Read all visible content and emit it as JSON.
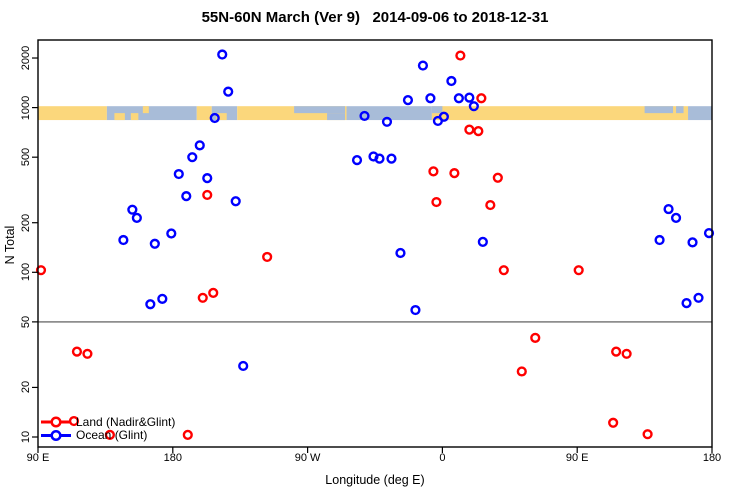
{
  "chart_data": {
    "type": "scatter",
    "title": "55N-60N March (Ver 9)   2014-09-06 to 2018-12-31",
    "xlabel": "Longitude (deg E)",
    "ylabel": "N Total",
    "x_axis": {
      "min": 90,
      "max": 540,
      "note": "longitude axis wraps eastward: 90E -> 180 -> 90W -> 0 -> 90E -> 180",
      "ticks": [
        {
          "value": 90,
          "label": "90 E"
        },
        {
          "value": 180,
          "label": "180"
        },
        {
          "value": 270,
          "label": "90 W"
        },
        {
          "value": 360,
          "label": "0"
        },
        {
          "value": 450,
          "label": "90 E"
        },
        {
          "value": 540,
          "label": "180"
        }
      ]
    },
    "y_axis": {
      "scale": "log",
      "min": 10,
      "max": 2400,
      "ticks": [
        10,
        20,
        50,
        100,
        200,
        500,
        1000,
        2000
      ]
    },
    "reference_line": {
      "y": 50,
      "color": "#8E8E8E"
    },
    "coast_band": {
      "description": "land/ocean map strip for 55N-60N drawn across the plot",
      "n_range": [
        840,
        1020
      ],
      "land_color": "#FBD77C",
      "ocean_color": "#A8BCD8",
      "base_segments": [
        {
          "from": 90,
          "to": 136,
          "type": "land"
        },
        {
          "from": 136,
          "to": 196,
          "type": "ocean"
        },
        {
          "from": 196,
          "to": 206,
          "type": "land"
        },
        {
          "from": 206,
          "to": 223,
          "type": "ocean"
        },
        {
          "from": 223,
          "to": 296,
          "type": "land"
        },
        {
          "from": 296,
          "to": 353,
          "type": "ocean"
        },
        {
          "from": 353,
          "to": 524,
          "type": "land"
        },
        {
          "from": 524,
          "to": 540,
          "type": "ocean"
        }
      ],
      "patches": [
        {
          "from": 261,
          "to": 295,
          "pos": "top",
          "type": "ocean"
        },
        {
          "from": 283,
          "to": 295,
          "pos": "bottom",
          "type": "ocean"
        },
        {
          "from": 353,
          "to": 360,
          "pos": "top",
          "type": "ocean"
        },
        {
          "from": 495,
          "to": 514,
          "pos": "top",
          "type": "ocean"
        },
        {
          "from": 516,
          "to": 521,
          "pos": "top",
          "type": "ocean"
        },
        {
          "from": 141,
          "to": 148,
          "pos": "bottom",
          "type": "land"
        },
        {
          "from": 152,
          "to": 157,
          "pos": "bottom",
          "type": "land"
        },
        {
          "from": 160,
          "to": 164,
          "pos": "top",
          "type": "land"
        },
        {
          "from": 209,
          "to": 216,
          "pos": "bottom",
          "type": "land"
        }
      ]
    },
    "series": [
      {
        "name": "Land (Nadir&Glint)",
        "color": "#FF0000",
        "points": [
          [
            372,
            2070
          ],
          [
            386,
            1140
          ],
          [
            378,
            735
          ],
          [
            384,
            720
          ],
          [
            354,
            410
          ],
          [
            368,
            400
          ],
          [
            397,
            375
          ],
          [
            203,
            295
          ],
          [
            356,
            267
          ],
          [
            392,
            256
          ],
          [
            243,
            124
          ],
          [
            92,
            103
          ],
          [
            401,
            103
          ],
          [
            451,
            103
          ],
          [
            207,
            75
          ],
          [
            200,
            70
          ],
          [
            422,
            40
          ],
          [
            116,
            33
          ],
          [
            476,
            33
          ],
          [
            123,
            32
          ],
          [
            483,
            32
          ],
          [
            413,
            25
          ],
          [
            114,
            12.5
          ],
          [
            474,
            12.2
          ],
          [
            497,
            10.4
          ],
          [
            138,
            10.3
          ],
          [
            190,
            10.3
          ]
        ]
      },
      {
        "name": "Ocean (Glint)",
        "color": "#0000FF",
        "points": [
          [
            213,
            2100
          ],
          [
            347,
            1800
          ],
          [
            366,
            1450
          ],
          [
            217,
            1250
          ],
          [
            378,
            1150
          ],
          [
            352,
            1140
          ],
          [
            371,
            1140
          ],
          [
            337,
            1110
          ],
          [
            381,
            1020
          ],
          [
            308,
            890
          ],
          [
            361,
            880
          ],
          [
            208,
            865
          ],
          [
            357,
            830
          ],
          [
            323,
            820
          ],
          [
            198,
            590
          ],
          [
            314,
            505
          ],
          [
            193,
            500
          ],
          [
            318,
            490
          ],
          [
            326,
            490
          ],
          [
            303,
            480
          ],
          [
            184,
            395
          ],
          [
            203,
            373
          ],
          [
            189,
            290
          ],
          [
            222,
            270
          ],
          [
            511,
            242
          ],
          [
            153,
            240
          ],
          [
            516,
            214
          ],
          [
            156,
            214
          ],
          [
            538,
            173
          ],
          [
            179,
            172
          ],
          [
            168,
            149
          ],
          [
            147,
            157
          ],
          [
            505,
            157
          ],
          [
            387,
            153
          ],
          [
            527,
            152
          ],
          [
            332,
            131
          ],
          [
            531,
            70
          ],
          [
            173,
            69
          ],
          [
            523,
            65
          ],
          [
            165,
            64
          ],
          [
            342,
            59
          ],
          [
            227,
            27
          ]
        ]
      }
    ],
    "legend": {
      "position": "bottom-left"
    }
  }
}
